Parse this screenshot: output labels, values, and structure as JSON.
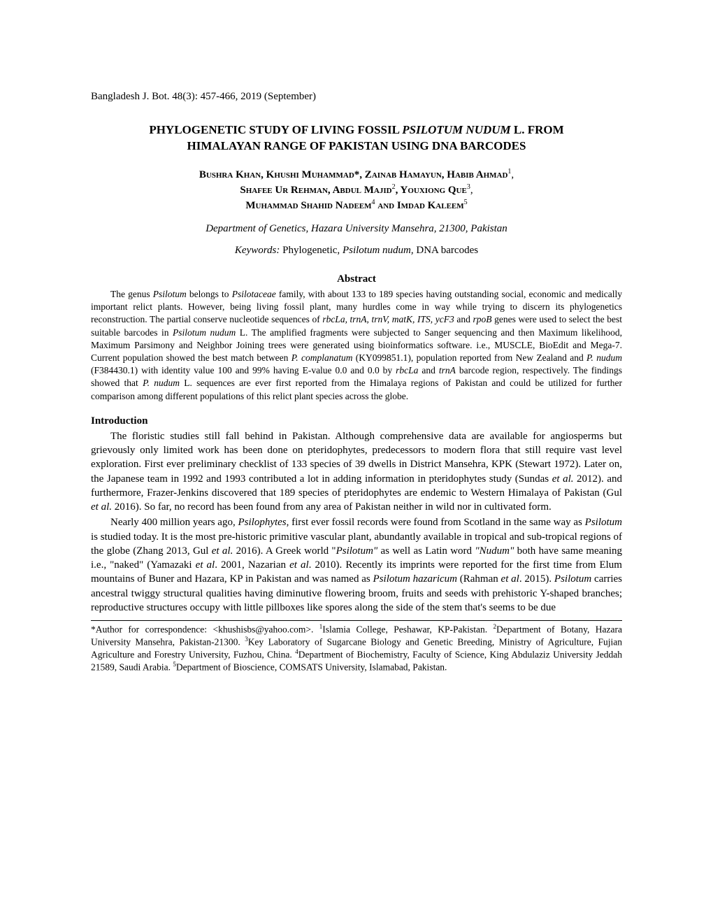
{
  "journal_header": "Bangladesh J. Bot. 48(3): 457-466, 2019 (September)",
  "title_line1": "PHYLOGENETIC STUDY OF LIVING FOSSIL ",
  "title_italic": "PSILOTUM NUDUM",
  "title_line1_end": " L. FROM",
  "title_line2": "HIMALAYAN RANGE OF PAKISTAN USING DNA BARCODES",
  "authors_l1_a": "Bushra Khan, Khushi Muhammad*, Zainab Hamayun, Habib Ahmad",
  "authors_l1_sup": "1",
  "authors_l1_end": ",",
  "authors_l2_a": "Shafee Ur Rehman, Abdul Majid",
  "authors_l2_sup1": "2",
  "authors_l2_mid": ", Youxiong Que",
  "authors_l2_sup2": "3",
  "authors_l2_end": ",",
  "authors_l3_a": "Muhammad Shahid Nadeem",
  "authors_l3_sup1": "4",
  "authors_l3_mid": " and Imdad Kaleem",
  "authors_l3_sup2": "5",
  "department": "Department of Genetics, Hazara University Mansehra, 21300, Pakistan",
  "keywords_label": "Keywords:",
  "keywords_p1": " Phylogenetic, ",
  "keywords_italic": "Psilotum nudum",
  "keywords_p2": ", DNA barcodes",
  "abstract_heading": "Abstract",
  "abs": {
    "p1": "The genus ",
    "i1": "Psilotum",
    "p2": " belongs to ",
    "i2": "Psilotaceae",
    "p3": " family, with about 133 to 189 species having outstanding social, economic and medically important relict plants. However, being living fossil plant, many hurdles come in way while trying to discern its phylogenetics reconstruction. The partial conserve nucleotide sequences of ",
    "i3": "rbcLa, trnA, trnV, matK, ITS, ycF3",
    "p4": " and ",
    "i4": "rpoB",
    "p5": " genes were used to select the best suitable barcodes in ",
    "i5": "Psilotum nudum",
    "p6": " L. The amplified fragments were subjected to Sanger sequencing and then Maximum likelihood, Maximum Parsimony and Neighbor Joining trees were generated using bioinformatics software. i.e., MUSCLE, BioEdit and Mega-7. Current population showed the best match between ",
    "i6": "P. complanatum",
    "p7": " (KY099851.1), population reported from New Zealand and ",
    "i7": "P. nudum",
    "p8": " (F384430.1) with identity value 100 and 99% having E-value 0.0 and 0.0 by ",
    "i8": "rbcLa",
    "p9": " and ",
    "i9": "trnA",
    "p10": " barcode region, respectively. The findings showed that ",
    "i10": "P. nudum",
    "p11": " L. sequences are ever first reported from the Himalaya regions of Pakistan and could be utilized for further comparison among different populations of this relict plant species across the globe."
  },
  "intro_heading": "Introduction",
  "intro1": {
    "p1": "The floristic studies still fall behind in Pakistan. Although comprehensive data are available for angiosperms but grievously only limited work has been done on pteridophytes, predecessors to modern flora that still require vast level exploration. First ever preliminary checklist of 133 species of 39 dwells in District Mansehra, KPK (Stewart 1972). Later on, the Japanese team in 1992 and 1993 contributed a lot in adding information in pteridophytes study (Sundas ",
    "i1": "et al.",
    "p2": " 2012). and furthermore, Frazer-Jenkins discovered that 189 species of pteridophytes are endemic to Western Himalaya of Pakistan (Gul ",
    "i2": "et al.",
    "p3": " 2016). So far, no record has been found from any area of Pakistan neither in wild nor in cultivated form."
  },
  "intro2": {
    "p1": "Nearly 400 million years ago, ",
    "i1": "Psilophytes",
    "p2": ", first ever fossil records were found from Scotland in the same way as ",
    "i2": "Psilotum",
    "p3": " is studied today. It is the most pre-historic primitive vascular plant, abundantly available in tropical and sub-tropical regions of the globe (Zhang 2013, Gul ",
    "i3": "et al.",
    "p4": " 2016). A Greek world \"",
    "i4": "Psilotum\"",
    "p5": " as well as Latin word ",
    "i5": "\"Nudum\"",
    "p6": " both have same meaning i.e., \"naked\" (Yamazaki ",
    "i6": "et al",
    "p7": ". 2001, Nazarian ",
    "i7": "et al",
    "p8": ". 2010). Recently its imprints were reported for the first time from Elum mountains of Buner and Hazara, KP in Pakistan and was named as ",
    "i8": "Psilotum hazaricum",
    "p9": " (Rahman ",
    "i9": "et al",
    "p10": ". 2015). ",
    "i10": "Psilotum",
    "p11": " carries ancestral twiggy structural qualities having diminutive flowering broom, fruits and seeds with prehistoric Y-shaped branches; reproductive structures occupy with little pillboxes like spores along the side of the stem that's seems to be due"
  },
  "footnote": {
    "p1": "*Author for correspondence: <khushisbs@yahoo.com>. ",
    "s1": "1",
    "p2": "Islamia College, Peshawar, KP-Pakistan. ",
    "s2": "2",
    "p3": "Department of Botany, Hazara University Mansehra, Pakistan-21300. ",
    "s3": "3",
    "p4": "Key Laboratory of Sugarcane Biology and Genetic Breeding, Ministry of Agriculture, Fujian Agriculture and Forestry University, Fuzhou, China. ",
    "s4": "4",
    "p5": "Department of Biochemistry, Faculty of Science, King Abdulaziz University Jeddah 21589, Saudi Arabia. ",
    "s5": "5",
    "p6": "Department of Bioscience, COMSATS University, Islamabad, Pakistan."
  }
}
